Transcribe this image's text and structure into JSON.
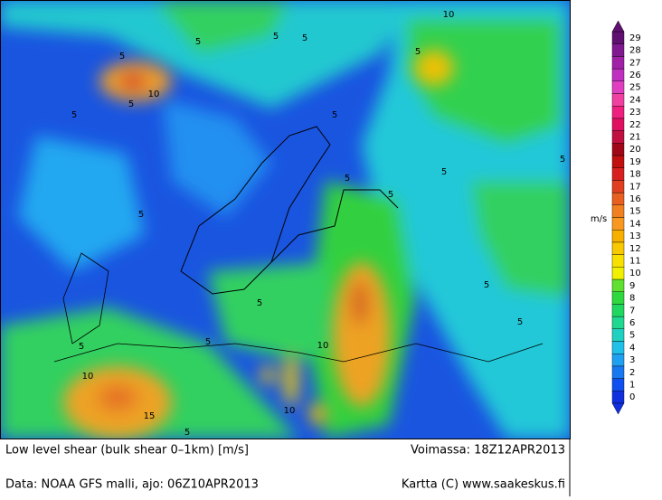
{
  "map": {
    "contour_labels": [
      "5",
      "5",
      "10",
      "5",
      "5",
      "5",
      "5",
      "5",
      "5",
      "10",
      "5",
      "5",
      "5",
      "5",
      "5",
      "5",
      "5",
      "5",
      "5",
      "5",
      "10",
      "10",
      "15",
      "10",
      "5"
    ]
  },
  "colorbar": {
    "unit": "m/s",
    "levels": [
      0,
      1,
      2,
      3,
      4,
      5,
      6,
      7,
      8,
      9,
      10,
      11,
      12,
      13,
      14,
      15,
      16,
      17,
      18,
      19,
      20,
      21,
      22,
      23,
      24,
      25,
      26,
      27,
      28,
      29
    ],
    "colors": [
      "#1030e0",
      "#1050f0",
      "#1878f0",
      "#20a0f0",
      "#20c0e8",
      "#20d0c0",
      "#20d890",
      "#20d860",
      "#30d840",
      "#60e030",
      "#f0f000",
      "#f8e000",
      "#f8c800",
      "#f8b000",
      "#f89820",
      "#f08020",
      "#e86020",
      "#e04020",
      "#d82020",
      "#c01010",
      "#a00818",
      "#c01040",
      "#e01060",
      "#f02080",
      "#f040a0",
      "#e040c0",
      "#c030c0",
      "#a020a8",
      "#801890",
      "#601070"
    ]
  },
  "footer": {
    "title": "Low level shear (bulk shear 0–1km) [m/s]",
    "valid": "Voimassa: 18Z12APR2013",
    "source": "Data: NOAA GFS malli, ajo: 06Z10APR2013",
    "credit": "Kartta (C) www.saakeskus.fi"
  }
}
